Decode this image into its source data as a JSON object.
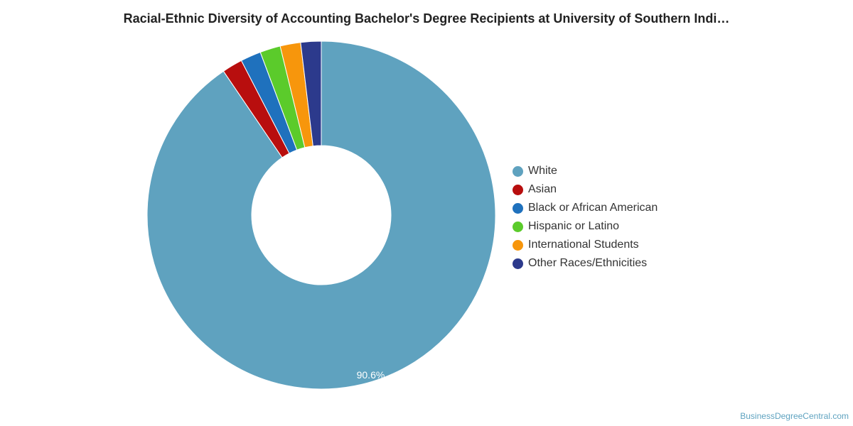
{
  "title": "Racial-Ethnic Diversity of Accounting Bachelor's Degree Recipients at University of Southern Indi…",
  "credit": "BusinessDegreeCentral.com",
  "chart_data": {
    "type": "pie",
    "variant": "donut",
    "title": "Racial-Ethnic Diversity of Accounting Bachelor's Degree Recipients at University of Southern Indi…",
    "legend_position": "right",
    "categories": [
      "White",
      "Asian",
      "Black or African American",
      "Hispanic or Latino",
      "International Students",
      "Other Races/Ethnicities"
    ],
    "values": [
      90.6,
      1.9,
      1.9,
      1.9,
      1.9,
      1.9
    ],
    "colors": [
      "#5fa2bf",
      "#b80e0e",
      "#1f71bd",
      "#5bcb2b",
      "#f7960c",
      "#2c3a8c"
    ],
    "data_labels": [
      "90.6%",
      "",
      "",
      "",
      "",
      ""
    ]
  }
}
